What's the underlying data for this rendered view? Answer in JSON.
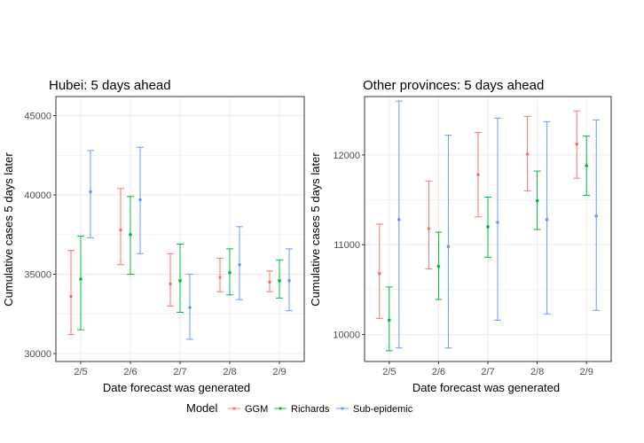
{
  "chart_data": [
    {
      "type": "errorbar",
      "title": "Hubei: 5 days ahead",
      "xlabel": "Date forecast was generated",
      "ylabel": "Cumulative cases 5 days later",
      "categories": [
        "2/5",
        "2/6",
        "2/7",
        "2/8",
        "2/9"
      ],
      "ylim": [
        29500,
        46200
      ],
      "yticks": [
        30000,
        35000,
        40000,
        45000
      ],
      "ytick_labels": [
        "30000",
        "35000",
        "40000",
        "45000"
      ],
      "grid": true,
      "series": [
        {
          "name": "GGM",
          "values": [
            33600,
            37800,
            34400,
            34800,
            34500
          ],
          "lower": [
            31200,
            35600,
            33000,
            33900,
            33900
          ],
          "upper": [
            36500,
            40400,
            36300,
            36000,
            35200
          ]
        },
        {
          "name": "Richards",
          "values": [
            34700,
            37500,
            34600,
            35100,
            34600
          ],
          "lower": [
            31500,
            35000,
            32600,
            33700,
            33500
          ],
          "upper": [
            37400,
            39900,
            36900,
            36600,
            35900
          ]
        },
        {
          "name": "Sub-epidemic",
          "values": [
            40200,
            39700,
            32900,
            35600,
            34600
          ],
          "lower": [
            37300,
            36300,
            30900,
            33400,
            32700
          ],
          "upper": [
            42800,
            43000,
            35000,
            38000,
            36600
          ]
        }
      ]
    },
    {
      "type": "errorbar",
      "title": "Other provinces: 5 days ahead",
      "xlabel": "Date forecast was generated",
      "ylabel": "Cumulative cases 5 days later",
      "categories": [
        "2/5",
        "2/6",
        "2/7",
        "2/8",
        "2/9"
      ],
      "ylim": [
        9700,
        12650
      ],
      "yticks": [
        10000,
        11000,
        12000
      ],
      "ytick_labels": [
        "10000",
        "11000",
        "12000"
      ],
      "grid": true,
      "series": [
        {
          "name": "GGM",
          "values": [
            10680,
            11180,
            11780,
            12010,
            12120
          ],
          "lower": [
            10180,
            10730,
            11310,
            11600,
            11740
          ],
          "upper": [
            11230,
            11710,
            12250,
            12430,
            12490
          ]
        },
        {
          "name": "Richards",
          "values": [
            10160,
            10760,
            11200,
            11490,
            11880
          ],
          "lower": [
            9820,
            10390,
            10860,
            11170,
            11550
          ],
          "upper": [
            10530,
            11140,
            11530,
            11820,
            12210
          ]
        },
        {
          "name": "Sub-epidemic",
          "values": [
            11280,
            10980,
            11250,
            11280,
            11320
          ],
          "lower": [
            9850,
            9850,
            10160,
            10230,
            10270
          ],
          "upper": [
            12600,
            12220,
            12410,
            12370,
            12390
          ]
        }
      ]
    }
  ],
  "legend": {
    "title": "Model",
    "position": "bottom",
    "items": [
      {
        "label": "GGM",
        "color": "#F8766D"
      },
      {
        "label": "Richards",
        "color": "#00BA38"
      },
      {
        "label": "Sub-epidemic",
        "color": "#619CFF"
      }
    ]
  },
  "colors": {
    "GGM": "#F8766D",
    "Richards": "#00BA38",
    "Sub-epidemic": "#619CFF",
    "grid": "#ebebeb",
    "panel_border": "#333333"
  }
}
